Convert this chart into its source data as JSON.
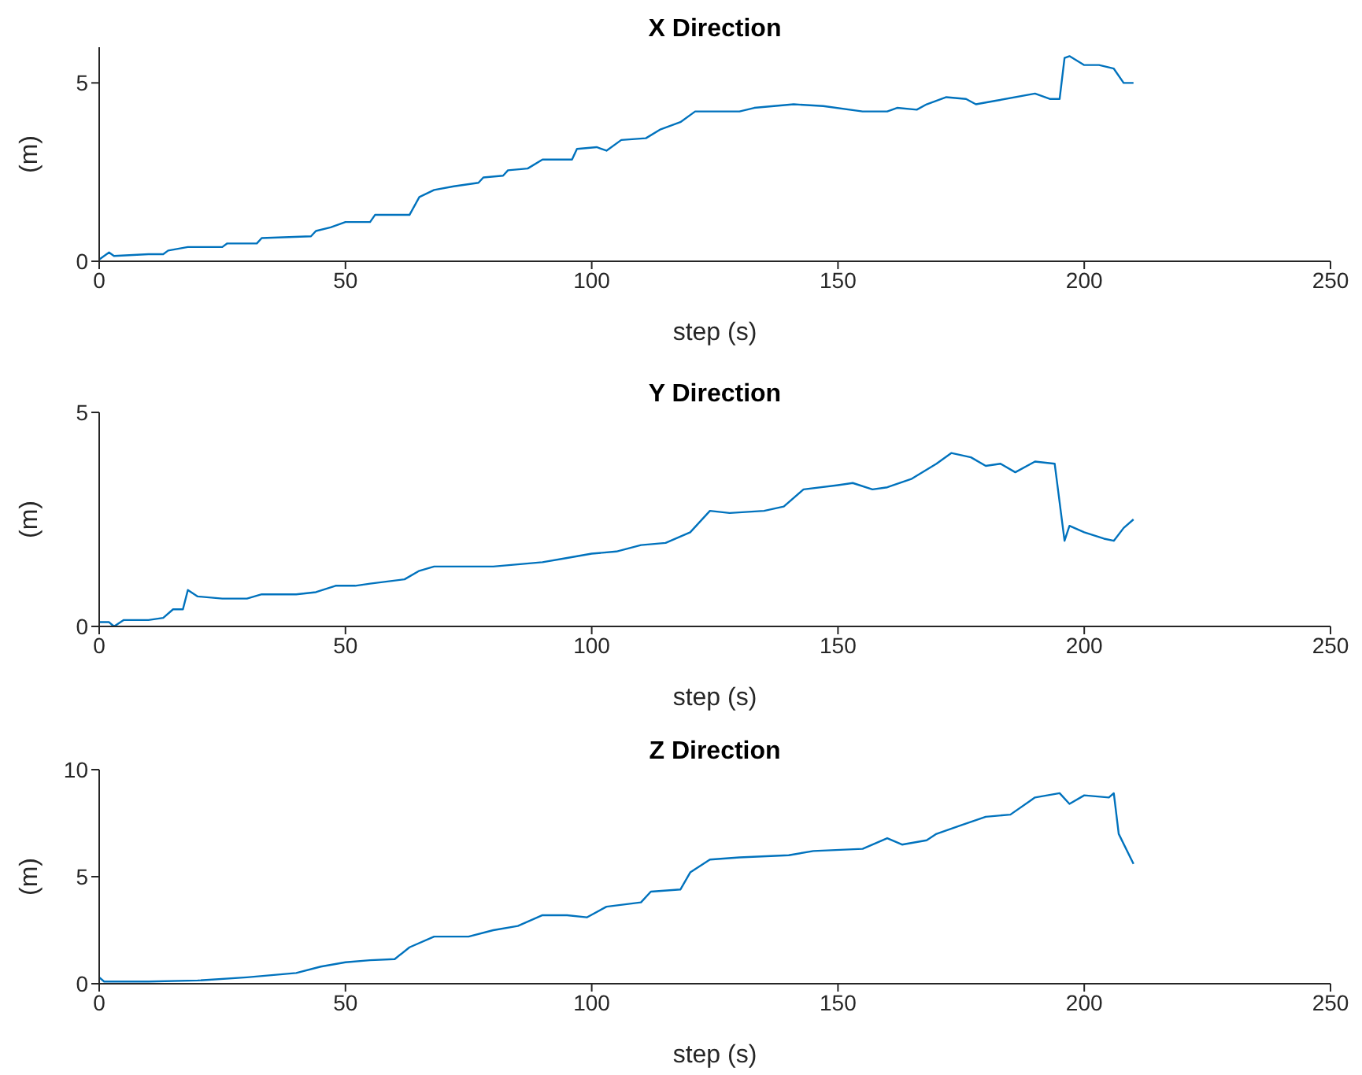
{
  "chart_data": [
    {
      "type": "line",
      "title": "X Direction",
      "xlabel": "step (s)",
      "ylabel": "(m)",
      "color": "#0072bd",
      "xlim": [
        0,
        250
      ],
      "xticks": [
        0,
        50,
        100,
        150,
        200,
        250
      ],
      "ylim": [
        0,
        6
      ],
      "yticks": [
        0,
        5
      ],
      "x": [
        0,
        2,
        3,
        10,
        13,
        14,
        18,
        25,
        26,
        32,
        33,
        43,
        44,
        47,
        50,
        55,
        56,
        63,
        65,
        68,
        72,
        77,
        78,
        82,
        83,
        87,
        90,
        96,
        97,
        101,
        103,
        106,
        111,
        114,
        118,
        121,
        130,
        133,
        141,
        147,
        155,
        160,
        162,
        166,
        168,
        172,
        176,
        178,
        182,
        190,
        193,
        195,
        196,
        197,
        200,
        203,
        206,
        208,
        210
      ],
      "values": [
        0.05,
        0.25,
        0.15,
        0.2,
        0.2,
        0.3,
        0.4,
        0.4,
        0.5,
        0.5,
        0.65,
        0.7,
        0.85,
        0.95,
        1.1,
        1.1,
        1.3,
        1.3,
        1.8,
        2.0,
        2.1,
        2.2,
        2.35,
        2.4,
        2.55,
        2.6,
        2.85,
        2.85,
        3.15,
        3.2,
        3.1,
        3.4,
        3.45,
        3.7,
        3.9,
        4.2,
        4.2,
        4.3,
        4.4,
        4.35,
        4.2,
        4.2,
        4.3,
        4.25,
        4.4,
        4.6,
        4.55,
        4.4,
        4.5,
        4.7,
        4.55,
        4.55,
        5.7,
        5.75,
        5.5,
        5.5,
        5.4,
        5.0,
        5.0
      ]
    },
    {
      "type": "line",
      "title": "Y Direction",
      "xlabel": "step (s)",
      "ylabel": "(m)",
      "color": "#0072bd",
      "xlim": [
        0,
        250
      ],
      "xticks": [
        0,
        50,
        100,
        150,
        200,
        250
      ],
      "ylim": [
        0,
        5
      ],
      "yticks": [
        0,
        5
      ],
      "x": [
        0,
        2,
        3,
        5,
        10,
        13,
        15,
        17,
        18,
        20,
        25,
        30,
        33,
        40,
        44,
        48,
        52,
        55,
        62,
        65,
        68,
        80,
        90,
        95,
        100,
        105,
        110,
        115,
        120,
        124,
        128,
        135,
        139,
        143,
        150,
        153,
        157,
        160,
        165,
        170,
        173,
        177,
        180,
        183,
        186,
        190,
        194,
        196,
        197,
        200,
        204,
        206,
        208,
        210
      ],
      "values": [
        0.1,
        0.1,
        0.0,
        0.15,
        0.15,
        0.2,
        0.4,
        0.4,
        0.85,
        0.7,
        0.65,
        0.65,
        0.75,
        0.75,
        0.8,
        0.95,
        0.95,
        1.0,
        1.1,
        1.3,
        1.4,
        1.4,
        1.5,
        1.6,
        1.7,
        1.75,
        1.9,
        1.95,
        2.2,
        2.7,
        2.65,
        2.7,
        2.8,
        3.2,
        3.3,
        3.35,
        3.2,
        3.25,
        3.45,
        3.8,
        4.05,
        3.95,
        3.75,
        3.8,
        3.6,
        3.85,
        3.8,
        2.0,
        2.35,
        2.2,
        2.05,
        2.0,
        2.3,
        2.5
      ]
    },
    {
      "type": "line",
      "title": "Z Direction",
      "xlabel": "step (s)",
      "ylabel": "(m)",
      "color": "#0072bd",
      "xlim": [
        0,
        250
      ],
      "xticks": [
        0,
        50,
        100,
        150,
        200,
        250
      ],
      "ylim": [
        0,
        10
      ],
      "yticks": [
        0,
        5,
        10
      ],
      "x": [
        0,
        1,
        10,
        20,
        30,
        35,
        40,
        45,
        50,
        55,
        60,
        63,
        68,
        75,
        80,
        85,
        90,
        95,
        99,
        103,
        110,
        112,
        118,
        120,
        124,
        130,
        140,
        145,
        155,
        160,
        163,
        168,
        170,
        175,
        180,
        185,
        190,
        195,
        197,
        200,
        205,
        206,
        207,
        210
      ],
      "values": [
        0.3,
        0.1,
        0.1,
        0.15,
        0.3,
        0.4,
        0.5,
        0.8,
        1.0,
        1.1,
        1.15,
        1.7,
        2.2,
        2.2,
        2.5,
        2.7,
        3.2,
        3.2,
        3.1,
        3.6,
        3.8,
        4.3,
        4.4,
        5.2,
        5.8,
        5.9,
        6.0,
        6.2,
        6.3,
        6.8,
        6.5,
        6.7,
        7.0,
        7.4,
        7.8,
        7.9,
        8.7,
        8.9,
        8.4,
        8.8,
        8.7,
        8.9,
        7.0,
        5.6
      ]
    }
  ]
}
